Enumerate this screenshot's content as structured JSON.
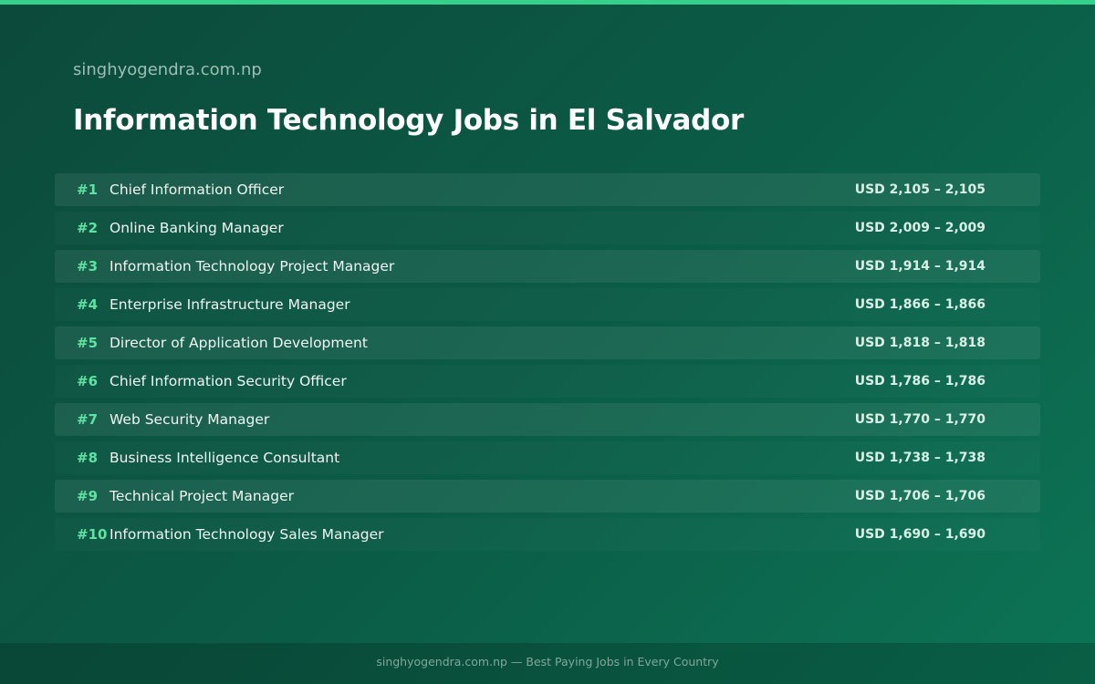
{
  "header": {
    "site": "singhyogendra.com.np",
    "title": "Information Technology Jobs in El Salvador"
  },
  "table": {
    "rows": [
      [
        "#1",
        "Chief Information Officer",
        "USD 2,105 – 2,105"
      ],
      [
        "#2",
        "Online Banking Manager",
        "USD 2,009 – 2,009"
      ],
      [
        "#3",
        "Information Technology Project Manager",
        "USD 1,914 – 1,914"
      ],
      [
        "#4",
        "Enterprise Infrastructure Manager",
        "USD 1,866 – 1,866"
      ],
      [
        "#5",
        "Director of Application Development",
        "USD 1,818 – 1,818"
      ],
      [
        "#6",
        "Chief Information Security Officer",
        "USD 1,786 – 1,786"
      ],
      [
        "#7",
        "Web Security Manager",
        "USD 1,770 – 1,770"
      ],
      [
        "#8",
        "Business Intelligence Consultant",
        "USD 1,738 – 1,738"
      ],
      [
        "#9",
        "Technical Project Manager",
        "USD 1,706 – 1,706"
      ],
      [
        "#10",
        "Information Technology Sales Manager",
        "USD 1,690 – 1,690"
      ]
    ]
  },
  "footer": {
    "text": "singhyogendra.com.np — Best Paying Jobs in Every Country"
  }
}
